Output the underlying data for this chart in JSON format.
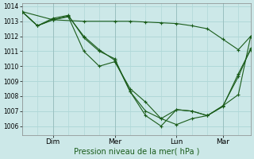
{
  "background_color": "#cce8e8",
  "grid_color": "#b0d8d8",
  "line_color": "#1a5c1a",
  "marker_color": "#1a5c1a",
  "xlabel": "Pression niveau de la mer( hPa )",
  "ylim": [
    1005.4,
    1014.2
  ],
  "yticks": [
    1006,
    1007,
    1008,
    1009,
    1010,
    1011,
    1012,
    1013,
    1014
  ],
  "xtick_labels": [
    "Dim",
    "Mer",
    "Lun",
    "Mar"
  ],
  "xtick_positions": [
    1.0,
    3.0,
    5.0,
    6.5
  ],
  "xlim": [
    0.0,
    7.4
  ],
  "series": [
    {
      "x": [
        0.0,
        1.0,
        2.0,
        3.0,
        3.5,
        4.0,
        4.5,
        5.0,
        5.5,
        6.0,
        6.5,
        7.0,
        7.4
      ],
      "y": [
        1013.65,
        1013.1,
        1013.0,
        1013.0,
        1013.0,
        1012.95,
        1012.9,
        1012.85,
        1012.7,
        1012.5,
        1011.8,
        1011.1,
        1012.0
      ]
    },
    {
      "x": [
        0.0,
        0.5,
        1.0,
        1.5,
        2.0,
        2.5,
        3.0,
        3.5,
        4.0,
        4.5,
        5.0,
        5.5,
        6.0,
        6.5,
        7.0,
        7.4
      ],
      "y": [
        1013.65,
        1012.7,
        1013.1,
        1013.3,
        1011.0,
        1010.0,
        1010.3,
        1008.5,
        1007.6,
        1006.5,
        1006.1,
        1006.5,
        1006.7,
        1007.3,
        1009.5,
        1011.1
      ]
    },
    {
      "x": [
        0.0,
        0.5,
        1.0,
        1.5,
        2.0,
        2.5,
        3.0,
        3.5,
        4.0,
        4.5,
        5.0,
        5.5,
        6.0,
        6.5,
        7.0,
        7.4
      ],
      "y": [
        1013.65,
        1012.7,
        1013.2,
        1013.4,
        1011.9,
        1011.0,
        1010.5,
        1008.3,
        1006.7,
        1006.0,
        1007.1,
        1007.0,
        1006.7,
        1007.35,
        1008.1,
        1012.0
      ]
    },
    {
      "x": [
        0.0,
        0.5,
        1.0,
        1.5,
        2.0,
        2.5,
        3.0,
        3.5,
        4.0,
        4.5,
        5.0,
        5.5,
        6.0,
        6.5,
        7.0,
        7.4
      ],
      "y": [
        1013.65,
        1012.7,
        1013.1,
        1013.35,
        1012.0,
        1011.1,
        1010.4,
        1008.3,
        1007.0,
        1006.5,
        1007.1,
        1007.0,
        1006.7,
        1007.35,
        1009.3,
        1011.2
      ]
    }
  ]
}
